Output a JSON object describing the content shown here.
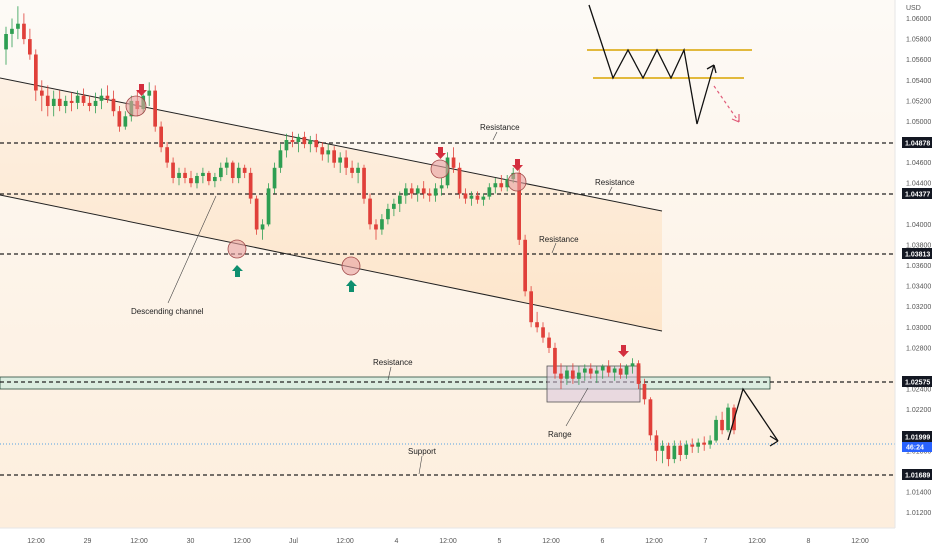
{
  "chart_data": {
    "type": "candlestick",
    "currency": "USD",
    "y_axis": {
      "min": 1.0105,
      "max": 1.0618,
      "ticks": [
        "1.06000",
        "1.05800",
        "1.05600",
        "1.05400",
        "1.05200",
        "1.05000",
        "1.04600",
        "1.04400",
        "1.04000",
        "1.03800",
        "1.03600",
        "1.03400",
        "1.03200",
        "1.03000",
        "1.02800",
        "1.02400",
        "1.02200",
        "1.01800",
        "1.01600",
        "1.01400",
        "1.01200"
      ],
      "tick_values": [
        1.06,
        1.058,
        1.056,
        1.054,
        1.052,
        1.05,
        1.046,
        1.044,
        1.04,
        1.038,
        1.036,
        1.034,
        1.032,
        1.03,
        1.028,
        1.024,
        1.022,
        1.018,
        1.016,
        1.014,
        1.012
      ]
    },
    "x_axis": {
      "labels": [
        "12:00",
        "29",
        "12:00",
        "30",
        "12:00",
        "Jul",
        "12:00",
        "4",
        "12:00",
        "5",
        "12:00",
        "6",
        "12:00",
        "7",
        "12:00",
        "8",
        "12:00"
      ]
    },
    "levels": [
      {
        "label": "Resistance",
        "value": 1.04878,
        "price_label": "1.04878"
      },
      {
        "label": "Resistance",
        "value": 1.04377,
        "price_label": "1.04377"
      },
      {
        "label": "Resistance",
        "value": 1.03813,
        "price_label": "1.03813"
      },
      {
        "label": "Resistance",
        "value": 1.02575,
        "price_label": "1.02575"
      },
      {
        "label": "Support",
        "value": 1.01689,
        "price_label": "1.01689"
      }
    ],
    "current_price": {
      "value": 1.01999,
      "price_label": "1.01999",
      "countdown": "46:24"
    },
    "annotations": [
      "Descending channel",
      "Range",
      "Resistance",
      "Resistance",
      "Resistance",
      "Resistance",
      "Support"
    ],
    "ohlc": [
      [
        0,
        1.057,
        1.0592,
        1.0555,
        1.0585
      ],
      [
        0,
        1.0585,
        1.06,
        1.0572,
        1.059
      ],
      [
        0,
        1.059,
        1.0612,
        1.058,
        1.0595
      ],
      [
        0,
        1.0595,
        1.0605,
        1.0575,
        1.058
      ],
      [
        0,
        1.058,
        1.059,
        1.056,
        1.0565
      ],
      [
        0,
        1.0565,
        1.057,
        1.052,
        1.053
      ],
      [
        0,
        1.053,
        1.054,
        1.051,
        1.0525
      ],
      [
        0,
        1.0525,
        1.0535,
        1.0505,
        1.0515
      ],
      [
        0,
        1.0515,
        1.053,
        1.0505,
        1.0522
      ],
      [
        0,
        1.0522,
        1.053,
        1.051,
        1.0515
      ],
      [
        0,
        1.0515,
        1.0525,
        1.0508,
        1.052
      ],
      [
        0,
        1.052,
        1.0528,
        1.051,
        1.0518
      ],
      [
        0,
        1.0518,
        1.053,
        1.0512,
        1.0525
      ],
      [
        0,
        1.0525,
        1.0532,
        1.0515,
        1.0518
      ],
      [
        0,
        1.0518,
        1.0525,
        1.051,
        1.0515
      ],
      [
        0,
        1.0515,
        1.0528,
        1.0508,
        1.052
      ],
      [
        0,
        1.052,
        1.0532,
        1.0512,
        1.0525
      ],
      [
        0,
        1.0525,
        1.0535,
        1.0518,
        1.0522
      ],
      [
        0,
        1.0522,
        1.053,
        1.0505,
        1.051
      ],
      [
        0,
        1.051,
        1.0515,
        1.049,
        1.0495
      ],
      [
        0,
        1.0495,
        1.051,
        1.0492,
        1.0505
      ],
      [
        0,
        1.0505,
        1.0525,
        1.05,
        1.052
      ],
      [
        0,
        1.052,
        1.053,
        1.0505,
        1.0512
      ],
      [
        0,
        1.0512,
        1.053,
        1.0508,
        1.0525
      ],
      [
        0,
        1.0525,
        1.0538,
        1.0515,
        1.053
      ],
      [
        0,
        1.053,
        1.0535,
        1.049,
        1.0495
      ],
      [
        0,
        1.0495,
        1.05,
        1.047,
        1.0475
      ],
      [
        0,
        1.0475,
        1.048,
        1.0455,
        1.046
      ],
      [
        0,
        1.046,
        1.0465,
        1.044,
        1.0445
      ],
      [
        0,
        1.0445,
        1.0455,
        1.0438,
        1.045
      ],
      [
        0,
        1.045,
        1.0455,
        1.044,
        1.0445
      ],
      [
        0,
        1.0445,
        1.0452,
        1.0436,
        1.044
      ],
      [
        0,
        1.044,
        1.045,
        1.0435,
        1.0447
      ],
      [
        0,
        1.0447,
        1.0455,
        1.044,
        1.045
      ],
      [
        0,
        1.045,
        1.0452,
        1.0438,
        1.0442
      ],
      [
        0,
        1.0442,
        1.045,
        1.0436,
        1.0446
      ],
      [
        0,
        1.0446,
        1.046,
        1.0442,
        1.0455
      ],
      [
        0,
        1.0455,
        1.0465,
        1.0448,
        1.046
      ],
      [
        0,
        1.046,
        1.0462,
        1.044,
        1.0445
      ],
      [
        0,
        1.0445,
        1.046,
        1.044,
        1.0455
      ],
      [
        0,
        1.0455,
        1.0458,
        1.0445,
        1.045
      ],
      [
        0,
        1.045,
        1.0455,
        1.042,
        1.0425
      ],
      [
        0,
        1.0425,
        1.0428,
        1.039,
        1.0395
      ],
      [
        0,
        1.0395,
        1.0405,
        1.0385,
        1.04
      ],
      [
        0,
        1.04,
        1.044,
        1.0398,
        1.0435
      ],
      [
        0,
        1.0435,
        1.046,
        1.043,
        1.0455
      ],
      [
        0,
        1.0455,
        1.0478,
        1.045,
        1.0472
      ],
      [
        0,
        1.0472,
        1.0488,
        1.0465,
        1.0482
      ],
      [
        0,
        1.0482,
        1.049,
        1.0475,
        1.048
      ],
      [
        0,
        1.048,
        1.0488,
        1.047,
        1.0485
      ],
      [
        0,
        1.0485,
        1.049,
        1.0474,
        1.0478
      ],
      [
        0,
        1.0478,
        1.0486,
        1.047,
        1.0482
      ],
      [
        0,
        1.0482,
        1.0488,
        1.047,
        1.0475
      ],
      [
        0,
        1.0475,
        1.048,
        1.0462,
        1.0468
      ],
      [
        0,
        1.0468,
        1.0478,
        1.046,
        1.0472
      ],
      [
        0,
        1.0472,
        1.0476,
        1.0455,
        1.046
      ],
      [
        0,
        1.046,
        1.047,
        1.045,
        1.0465
      ],
      [
        0,
        1.0465,
        1.0472,
        1.0448,
        1.0455
      ],
      [
        0,
        1.0455,
        1.0462,
        1.0445,
        1.045
      ],
      [
        0,
        1.045,
        1.046,
        1.044,
        1.0455
      ],
      [
        0,
        1.0455,
        1.0458,
        1.042,
        1.0425
      ],
      [
        0,
        1.0425,
        1.043,
        1.0395,
        1.04
      ],
      [
        0,
        1.04,
        1.0405,
        1.0385,
        1.0395
      ],
      [
        0,
        1.0395,
        1.041,
        1.039,
        1.0405
      ],
      [
        0,
        1.0405,
        1.042,
        1.04,
        1.0415
      ],
      [
        0,
        1.0415,
        1.0425,
        1.0408,
        1.042
      ],
      [
        0,
        1.042,
        1.0432,
        1.0412,
        1.0428
      ],
      [
        0,
        1.0428,
        1.044,
        1.042,
        1.0435
      ],
      [
        0,
        1.0435,
        1.044,
        1.0425,
        1.043
      ],
      [
        0,
        1.043,
        1.0438,
        1.0422,
        1.0435
      ],
      [
        0,
        1.0435,
        1.0442,
        1.0425,
        1.043
      ],
      [
        0,
        1.043,
        1.0435,
        1.0422,
        1.0428
      ],
      [
        0,
        1.0428,
        1.044,
        1.0422,
        1.0435
      ],
      [
        0,
        1.0435,
        1.0445,
        1.0428,
        1.0438
      ],
      [
        0,
        1.0438,
        1.047,
        1.0435,
        1.0465
      ],
      [
        0,
        1.0465,
        1.0475,
        1.045,
        1.0455
      ],
      [
        0,
        1.0455,
        1.046,
        1.0425,
        1.043
      ],
      [
        0,
        1.043,
        1.0435,
        1.042,
        1.0425
      ],
      [
        0,
        1.0425,
        1.0432,
        1.0418,
        1.0428
      ],
      [
        0,
        1.0428,
        1.0432,
        1.042,
        1.0424
      ],
      [
        0,
        1.0424,
        1.043,
        1.0418,
        1.0427
      ],
      [
        0,
        1.0427,
        1.044,
        1.0424,
        1.0436
      ],
      [
        0,
        1.0436,
        1.0445,
        1.043,
        1.044
      ],
      [
        0,
        1.044,
        1.0448,
        1.0432,
        1.0436
      ],
      [
        0,
        1.0436,
        1.0448,
        1.0432,
        1.0444
      ],
      [
        0,
        1.0444,
        1.0455,
        1.044,
        1.045
      ],
      [
        0,
        1.045,
        1.0455,
        1.038,
        1.0385
      ],
      [
        0,
        1.0385,
        1.039,
        1.033,
        1.0335
      ],
      [
        0,
        1.0335,
        1.034,
        1.03,
        1.0305
      ],
      [
        0,
        1.0305,
        1.0315,
        1.0295,
        1.03
      ],
      [
        0,
        1.03,
        1.0305,
        1.0285,
        1.029
      ],
      [
        0,
        1.029,
        1.0295,
        1.0275,
        1.028
      ],
      [
        0,
        1.028,
        1.0285,
        1.025,
        1.0255
      ],
      [
        0,
        1.0255,
        1.0265,
        1.024,
        1.025
      ],
      [
        0,
        1.025,
        1.0262,
        1.0244,
        1.0258
      ],
      [
        0,
        1.0258,
        1.0265,
        1.0245,
        1.025
      ],
      [
        0,
        1.025,
        1.0262,
        1.0244,
        1.0256
      ],
      [
        0,
        1.0256,
        1.0264,
        1.0248,
        1.026
      ],
      [
        0,
        1.026,
        1.0265,
        1.025,
        1.0255
      ],
      [
        0,
        1.0255,
        1.0262,
        1.0246,
        1.0258
      ],
      [
        0,
        1.0258,
        1.0264,
        1.025,
        1.0262
      ],
      [
        0,
        1.0262,
        1.0268,
        1.0252,
        1.0256
      ],
      [
        0,
        1.0256,
        1.0262,
        1.0248,
        1.026
      ],
      [
        0,
        1.026,
        1.0265,
        1.025,
        1.0254
      ],
      [
        0,
        1.0254,
        1.0264,
        1.025,
        1.0262
      ],
      [
        0,
        1.0262,
        1.027,
        1.0255,
        1.0265
      ],
      [
        0,
        1.0265,
        1.0268,
        1.024,
        1.0245
      ],
      [
        0,
        1.0245,
        1.025,
        1.0225,
        1.023
      ],
      [
        0,
        1.023,
        1.0232,
        1.019,
        1.0195
      ],
      [
        0,
        1.0195,
        1.02,
        1.017,
        1.018
      ],
      [
        0,
        1.018,
        1.019,
        1.0168,
        1.0185
      ],
      [
        0,
        1.0185,
        1.0188,
        1.0165,
        1.0172
      ],
      [
        0,
        1.0172,
        1.019,
        1.0168,
        1.0185
      ],
      [
        0,
        1.0185,
        1.019,
        1.017,
        1.0176
      ],
      [
        0,
        1.0176,
        1.019,
        1.0172,
        1.0186
      ],
      [
        0,
        1.0186,
        1.0192,
        1.0178,
        1.0184
      ],
      [
        0,
        1.0184,
        1.0192,
        1.0178,
        1.0188
      ],
      [
        0,
        1.0188,
        1.0194,
        1.018,
        1.0186
      ],
      [
        0,
        1.0186,
        1.0195,
        1.0182,
        1.019
      ],
      [
        0,
        1.019,
        1.0214,
        1.0188,
        1.021
      ],
      [
        0,
        1.021,
        1.0218,
        1.0196,
        1.02
      ],
      [
        0,
        1.02,
        1.0226,
        1.0198,
        1.0222
      ],
      [
        0,
        1.0222,
        1.0225,
        1.0196,
        1.02
      ]
    ]
  }
}
